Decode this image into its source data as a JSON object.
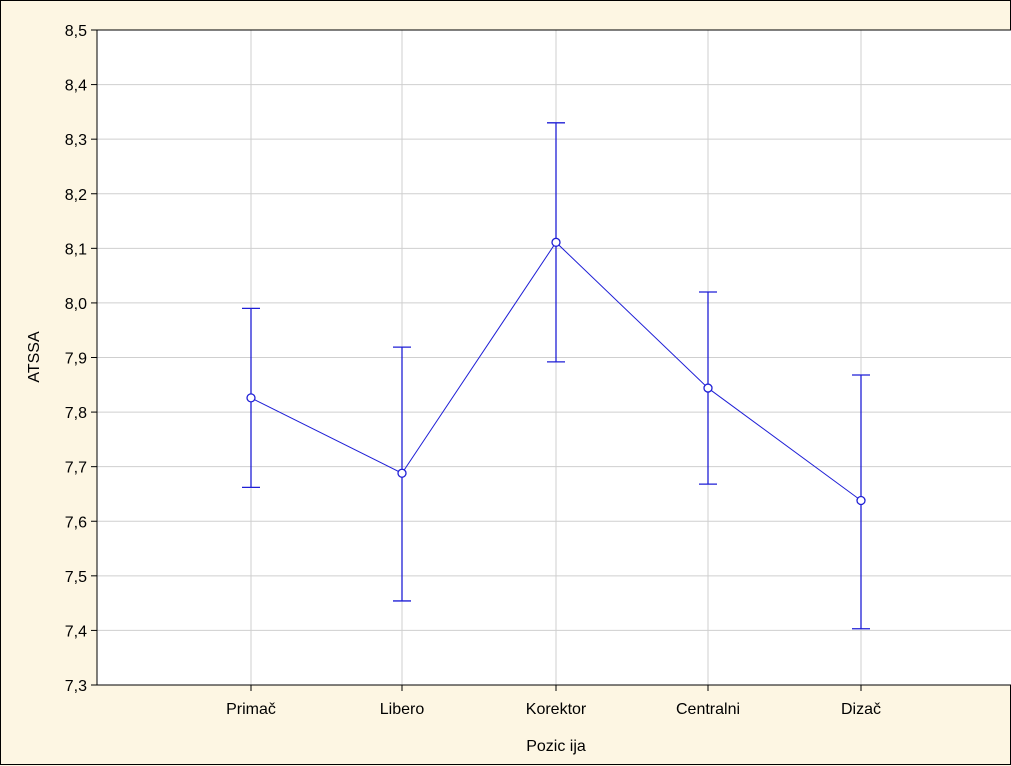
{
  "chart_data": {
    "type": "line",
    "subtype": "means-with-error-bars",
    "title": "",
    "xlabel": "Pozic ija",
    "ylabel": "ATSSA",
    "categories": [
      "Primač",
      "Libero",
      "Korektor",
      "Centralni",
      "Dizač"
    ],
    "ylim": [
      7.3,
      8.5
    ],
    "yticks": [
      7.3,
      7.4,
      7.5,
      7.6,
      7.7,
      7.8,
      7.9,
      8.0,
      8.1,
      8.2,
      8.3,
      8.4,
      8.5
    ],
    "ytick_labels": [
      "7,3",
      "7,4",
      "7,5",
      "7,6",
      "7,7",
      "7,8",
      "7,9",
      "8,0",
      "8,1",
      "8,2",
      "8,3",
      "8,4",
      "8,5"
    ],
    "grid": true,
    "legend": "none",
    "series": [
      {
        "values": [
          7.826,
          7.688,
          8.111,
          7.844,
          7.638
        ],
        "lower": [
          7.662,
          7.454,
          7.892,
          7.668,
          7.403
        ],
        "upper": [
          7.99,
          7.919,
          8.33,
          8.02,
          7.868
        ],
        "color": "#1f1fd6"
      }
    ]
  }
}
